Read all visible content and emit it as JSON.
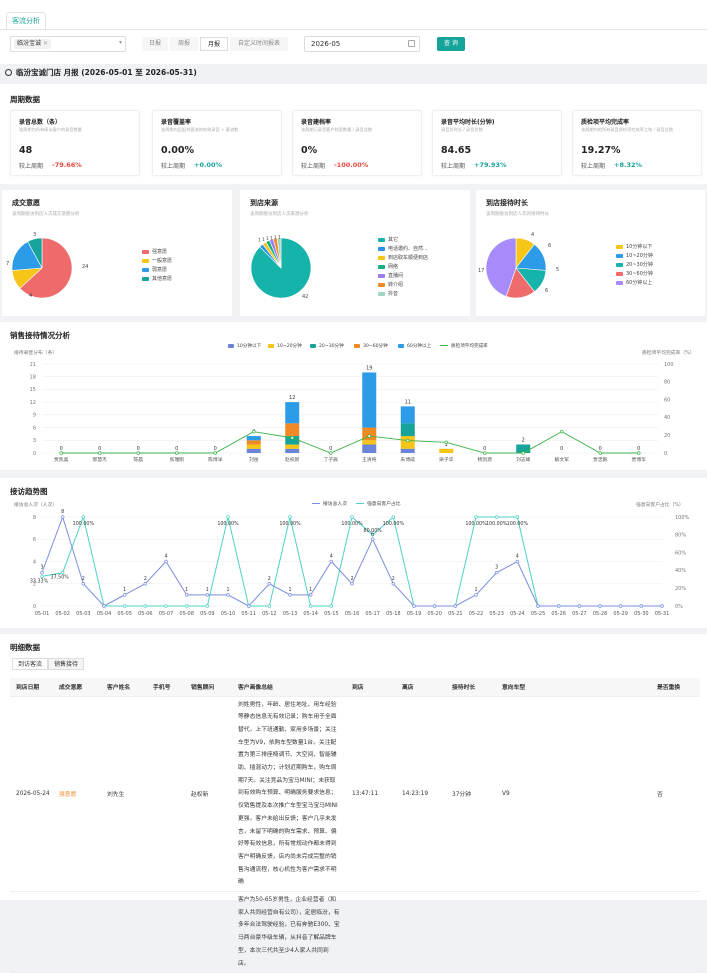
{
  "tabs": [
    {
      "label": "客流分析"
    }
  ],
  "filter": {
    "store_chip": "临汾宝诚",
    "periods": [
      "日报",
      "周报",
      "月报",
      "自定义时间报表"
    ],
    "active_period": "月报",
    "date": "2026-05",
    "query_label": "查 询"
  },
  "store_title": "临汾宝诚门店 月报 (2026-05-01 至 2026-05-31)",
  "period_section": {
    "title": "周期数据",
    "cards": [
      {
        "title": "录音总数（条）",
        "desc": "该周期内所有接访客户的录音数量",
        "value": "48",
        "cmp_label": "较上周期",
        "cmp_value": "-79.66%"
      },
      {
        "title": "录音覆盖率",
        "desc": "该周期内匹配到客流的有效录音 ÷ 客流数",
        "value": "0.00%",
        "cmp_label": "较上周期",
        "cmp_value": "+0.00%"
      },
      {
        "title": "录音建档率",
        "desc": "该周期已录音客户档案数量 / 录音总数",
        "value": "0%",
        "cmp_label": "较上周期",
        "cmp_value": "-100.00%"
      },
      {
        "title": "录音平均时长(分钟)",
        "desc": "录音总时长 / 录音总数",
        "value": "84.65",
        "cmp_label": "较上周期",
        "cmp_value": "+79.93%"
      },
      {
        "title": "质检项平均完成率",
        "desc": "该周期内的所有录音质检项完成率之和 / 录音总数",
        "value": "19.27%",
        "cmp_label": "较上周期",
        "cmp_value": "+8.32%"
      }
    ],
    "colors": {
      "down": "#e8483f",
      "up": "#16a399"
    }
  },
  "pies": [
    {
      "title": "成交意愿",
      "desc": "该周期接访到店人次成交意愿分析",
      "chart_data": {
        "type": "pie",
        "labels": [
          "强意愿",
          "一般意愿",
          "弱意愿",
          "其他意愿"
        ],
        "values": [
          24,
          4,
          7,
          3
        ],
        "colors": [
          "#ef6a6a",
          "#f5c518",
          "#2c9be8",
          "#16a399"
        ]
      }
    },
    {
      "title": "到店来源",
      "desc": "该周期接访到店人次来源分析",
      "chart_data": {
        "type": "pie",
        "labels": [
          "其它",
          "电话邀约、自然...",
          "到店取车顺便到店",
          "网络",
          "直播间",
          "转介绍",
          "抖音"
        ],
        "values": [
          42,
          1,
          1,
          1,
          1,
          1,
          1
        ],
        "colors": [
          "#16b3aa",
          "#2c8fe8",
          "#f5c518",
          "#18b080",
          "#9a7ef0",
          "#f08a24",
          "#9fd6c6"
        ]
      }
    },
    {
      "title": "到店接待时长",
      "desc": "该周期接访到店人次的接待时长",
      "chart_data": {
        "type": "pie",
        "labels": [
          "10分钟以下",
          "10~20分钟",
          "20~30分钟",
          "30~60分钟",
          "60分钟以上"
        ],
        "values": [
          4,
          6,
          5,
          6,
          17
        ],
        "colors": [
          "#f5c518",
          "#2c9be8",
          "#16b3aa",
          "#ef6a6a",
          "#a78bfa"
        ]
      }
    }
  ],
  "sales_chart": {
    "title": "销售接待情况分析",
    "left_axis": "接待录音分布（条）",
    "right_axis": "质检项平均完成率（%）",
    "chart_data": {
      "type": "bar",
      "categories": [
        "贾凯奥",
        "郝慧杰",
        "陈晨",
        "张瑞刚",
        "陈博洋",
        "刘岳",
        "赵权新",
        "丁子辰",
        "王清纯",
        "朱博威",
        "梁子华",
        "杨凯源",
        "刘志峰",
        "解文军",
        "贾忠毅",
        "贾博华"
      ],
      "series": [
        {
          "name": "10分钟以下",
          "color": "#6b84d6",
          "values": [
            0,
            0,
            0,
            0,
            0,
            1,
            1,
            0,
            2,
            1,
            0,
            0,
            0,
            0,
            0,
            0
          ]
        },
        {
          "name": "10~20分钟",
          "color": "#f5c518",
          "values": [
            0,
            0,
            0,
            0,
            0,
            1,
            1,
            0,
            1,
            3,
            1,
            0,
            0,
            0,
            0,
            0
          ]
        },
        {
          "name": "20~30分钟",
          "color": "#16a399",
          "values": [
            0,
            0,
            0,
            0,
            0,
            0,
            2,
            0,
            0,
            3,
            0,
            0,
            2,
            0,
            0,
            0
          ]
        },
        {
          "name": "30~60分钟",
          "color": "#f08a24",
          "values": [
            0,
            0,
            0,
            0,
            0,
            1,
            3,
            0,
            3,
            0,
            0,
            0,
            0,
            0,
            0,
            0
          ]
        },
        {
          "name": "60分钟以上",
          "color": "#2c9be8",
          "values": [
            0,
            0,
            0,
            0,
            0,
            1,
            5,
            0,
            13,
            4,
            0,
            0,
            0,
            0,
            0,
            0
          ]
        }
      ],
      "line": {
        "name": "质检项平均完成率",
        "color": "#3bb24a",
        "values": [
          0,
          0,
          0,
          0,
          0,
          24,
          17,
          0,
          19,
          14,
          12,
          0,
          0,
          24,
          0,
          0
        ]
      },
      "bar_labels": [
        0,
        0,
        0,
        0,
        0,
        4,
        12,
        0,
        19,
        11,
        1,
        0,
        2,
        0,
        0,
        0
      ],
      "ylim": [
        0,
        21
      ],
      "yticks": [
        0,
        3,
        6,
        9,
        12,
        15,
        18,
        21
      ],
      "y2ticks": [
        0,
        20,
        40,
        60,
        80,
        100
      ]
    }
  },
  "trend_chart": {
    "title": "接访趋势图",
    "left_axis": "接访总人次（人次）",
    "right_axis": "强意向客户占比（%）",
    "chart_data": {
      "type": "line",
      "x": [
        "05-01",
        "05-02",
        "05-03",
        "05-04",
        "05-05",
        "05-06",
        "05-07",
        "05-08",
        "05-09",
        "05-10",
        "05-11",
        "05-12",
        "05-13",
        "05-14",
        "05-15",
        "05-16",
        "05-17",
        "05-18",
        "05-19",
        "05-20",
        "05-21",
        "05-22",
        "05-23",
        "05-24",
        "05-25",
        "05-26",
        "05-27",
        "05-28",
        "05-29",
        "05-30",
        "05-31"
      ],
      "series": [
        {
          "name": "接访总人次",
          "color": "#7b8ee0",
          "values": [
            3,
            8,
            2,
            0,
            1,
            2,
            4,
            1,
            1,
            1,
            0,
            2,
            1,
            1,
            4,
            2,
            6,
            2,
            0,
            0,
            0,
            1,
            3,
            4,
            0,
            0,
            0,
            0,
            0,
            0,
            0
          ]
        },
        {
          "name": "强意向客户占比",
          "color": "#4fd1c5",
          "values": [
            33.33,
            37.5,
            100,
            0,
            0,
            0,
            0,
            0,
            0,
            100,
            0,
            0,
            100,
            0,
            0,
            100,
            80,
            100,
            0,
            0,
            0,
            100,
            100,
            100,
            0,
            0,
            0,
            0,
            0,
            0,
            0
          ]
        }
      ],
      "point_labels": [
        {
          "i": 0,
          "text": "3"
        },
        {
          "i": 0,
          "text": "33.33%"
        },
        {
          "i": 1,
          "text": "8"
        },
        {
          "i": 1,
          "text": "37.50%"
        },
        {
          "i": 2,
          "text": "2"
        },
        {
          "i": 2,
          "text": "100.00%"
        },
        {
          "i": 4,
          "text": "1"
        },
        {
          "i": 5,
          "text": "2"
        },
        {
          "i": 6,
          "text": "4"
        },
        {
          "i": 7,
          "text": "1"
        },
        {
          "i": 8,
          "text": "1"
        },
        {
          "i": 9,
          "text": "1"
        },
        {
          "i": 9,
          "text": "100.00%"
        },
        {
          "i": 11,
          "text": "2"
        },
        {
          "i": 12,
          "text": "1"
        },
        {
          "i": 12,
          "text": "100.00%"
        },
        {
          "i": 13,
          "text": "1"
        },
        {
          "i": 14,
          "text": "4"
        },
        {
          "i": 15,
          "text": "2"
        },
        {
          "i": 15,
          "text": "100.00%"
        },
        {
          "i": 16,
          "text": "6"
        },
        {
          "i": 16,
          "text": "80.00%"
        },
        {
          "i": 17,
          "text": "2"
        },
        {
          "i": 17,
          "text": "100.00%"
        },
        {
          "i": 21,
          "text": "1"
        },
        {
          "i": 21,
          "text": "100.00%"
        },
        {
          "i": 22,
          "text": "3"
        },
        {
          "i": 22,
          "text": "100.00%"
        },
        {
          "i": 23,
          "text": "4"
        },
        {
          "i": 23,
          "text": "100.00%"
        }
      ],
      "ylim": [
        0,
        8
      ],
      "yticks": [
        0,
        2,
        4,
        6,
        8
      ],
      "y2ticks": [
        "0%",
        "20%",
        "40%",
        "60%",
        "80%",
        "100%"
      ]
    }
  },
  "detail": {
    "title": "明细数据",
    "subtabs": [
      "到访客流",
      "销售接待"
    ],
    "columns": [
      "到店日期",
      "成交意愿",
      "客户姓名",
      "手机号",
      "销售顾问",
      "客户画像总结",
      "到店",
      "离店",
      "接待时长",
      "意向车型",
      "是否重换"
    ],
    "rows": [
      {
        "date": "2026-05-24",
        "intent": "强意愿",
        "name": "刘先生",
        "phone": "",
        "advisor": "赵权新",
        "portrait": "刘姓男性，年龄、居住地址、用车经验等静态信息无有效记录；购车用于全面替代，上下班通勤、家用多场景；关注车型为V9，依购车型数量1台。关注配置为第三排座椅调节、大空间、智能辅助、插混动力；计划近期购车，购车周期7天。关注竞品为宝马MINI；未获取到有效购车预算、明确服务要求信息；仅销售提及本次推广车型宝马宝马MINI更强。客户未给出反馈；客户几乎未发言，未留下明确的购车需求、预算、偏好等有效信息，所有常规动作都未得到客户明确反馈，店内尚未完成完整的销售沟通流程，核心机性为客户需求不明确",
        "arrive": "13:47:11",
        "leave": "14:23:19",
        "duration": "37分钟",
        "model": "V9",
        "swap": "否"
      },
      {
        "date": "",
        "intent": "",
        "name": "",
        "phone": "",
        "advisor": "",
        "portrait": "客户为50-65岁男性，企业经营者（和家人共同经营自有公司），定居临汾，有多年合法驾驶经验，已有奔驰E300、宝马两台豪华级车辆，从抖音了解品牌车型，本次三代共至少4人家人共同到店。",
        "arrive": "",
        "leave": "",
        "duration": "",
        "model": "",
        "swap": ""
      }
    ]
  }
}
